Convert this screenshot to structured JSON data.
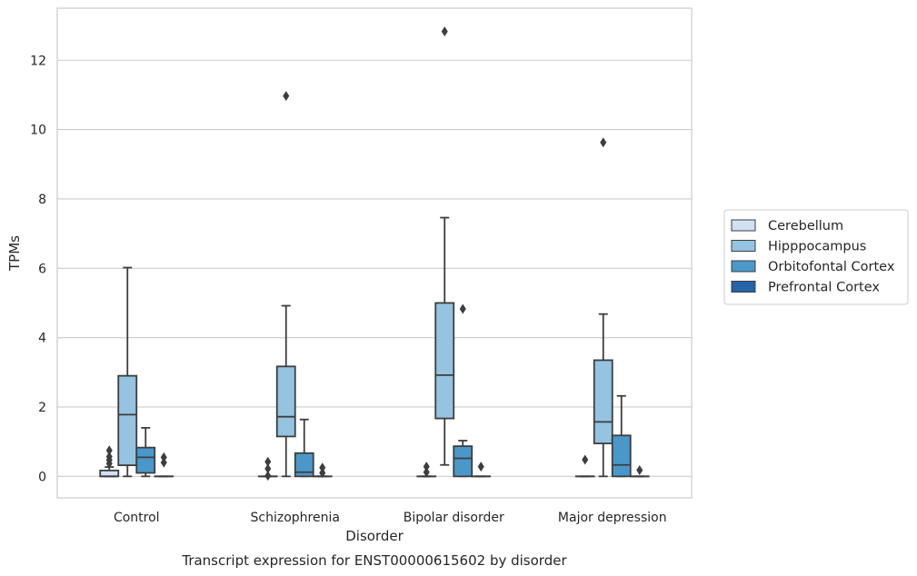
{
  "chart_data": {
    "type": "boxplot",
    "title": "Transcript expression for ENST00000615602 by disorder",
    "xlabel": "Disorder",
    "ylabel": "TPMs",
    "ylim": [
      -0.62,
      13.5
    ],
    "yticks": [
      0,
      2,
      4,
      6,
      8,
      10,
      12
    ],
    "grid": "horizontal",
    "legend_position": "right",
    "categories": [
      "Control",
      "Schizophrenia",
      "Bipolar disorder",
      "Major depression"
    ],
    "series": [
      {
        "name": "Cerebellum",
        "color": "#d0e1f2",
        "boxes": [
          {
            "whislo": 0,
            "q1": 0,
            "med": 0,
            "q3": 0.17,
            "whishi": 0.27,
            "fliers": [
              0.37,
              0.47,
              0.57,
              0.75
            ]
          },
          {
            "whislo": 0,
            "q1": 0,
            "med": 0,
            "q3": 0,
            "whishi": 0,
            "fliers": [
              0.02,
              0.22,
              0.42
            ]
          },
          {
            "whislo": 0,
            "q1": 0,
            "med": 0,
            "q3": 0,
            "whishi": 0,
            "fliers": [
              0.12,
              0.28
            ]
          },
          {
            "whislo": 0,
            "q1": 0,
            "med": 0,
            "q3": 0,
            "whishi": 0,
            "fliers": [
              0.48
            ]
          }
        ]
      },
      {
        "name": "Hipppocampus",
        "color": "#94c4df",
        "boxes": [
          {
            "whislo": 0.0,
            "q1": 0.32,
            "med": 1.78,
            "q3": 2.9,
            "whishi": 6.02,
            "fliers": []
          },
          {
            "whislo": 0.0,
            "q1": 1.15,
            "med": 1.72,
            "q3": 3.17,
            "whishi": 4.92,
            "fliers": [
              10.97
            ]
          },
          {
            "whislo": 0.33,
            "q1": 1.67,
            "med": 2.92,
            "q3": 5.0,
            "whishi": 7.46,
            "fliers": [
              12.83
            ]
          },
          {
            "whislo": 0.0,
            "q1": 0.95,
            "med": 1.57,
            "q3": 3.35,
            "whishi": 4.68,
            "fliers": [
              9.63
            ]
          }
        ]
      },
      {
        "name": "Orbitofontal Cortex",
        "color": "#4a98c9",
        "boxes": [
          {
            "whislo": 0,
            "q1": 0.1,
            "med": 0.55,
            "q3": 0.83,
            "whishi": 1.4,
            "fliers": []
          },
          {
            "whislo": 0,
            "q1": 0,
            "med": 0.12,
            "q3": 0.67,
            "whishi": 1.64,
            "fliers": []
          },
          {
            "whislo": 0,
            "q1": 0,
            "med": 0.52,
            "q3": 0.87,
            "whishi": 1.03,
            "fliers": [
              4.83
            ]
          },
          {
            "whislo": 0,
            "q1": 0,
            "med": 0.33,
            "q3": 1.18,
            "whishi": 2.32,
            "fliers": []
          }
        ]
      },
      {
        "name": "Prefrontal Cortex",
        "color": "#2464a9",
        "boxes": [
          {
            "whislo": 0,
            "q1": 0,
            "med": 0,
            "q3": 0,
            "whishi": 0,
            "fliers": [
              0.4,
              0.55
            ]
          },
          {
            "whislo": 0,
            "q1": 0,
            "med": 0,
            "q3": 0,
            "whishi": 0,
            "fliers": [
              0.1,
              0.25
            ]
          },
          {
            "whislo": 0,
            "q1": 0,
            "med": 0,
            "q3": 0,
            "whishi": 0,
            "fliers": [
              0.28
            ]
          },
          {
            "whislo": 0,
            "q1": 0,
            "med": 0,
            "q3": 0,
            "whishi": 0,
            "fliers": [
              0.18
            ]
          }
        ]
      }
    ]
  }
}
